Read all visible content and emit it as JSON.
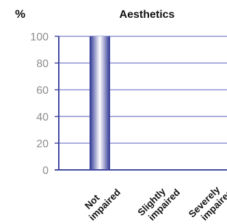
{
  "chart_data": {
    "type": "bar",
    "title": "Aesthetics",
    "ylabel": "%",
    "xlabel": "",
    "categories": [
      "Not\nimpaired",
      "Slightly\nimpaired",
      "Severely\nimpaired"
    ],
    "values": [
      100,
      0,
      0
    ],
    "ylim": [
      0,
      100
    ],
    "yticks": [
      0,
      20,
      40,
      60,
      80,
      100
    ],
    "grid": true,
    "colors": {
      "grid": "#8a8fd0",
      "axis": "#3c45a0",
      "bar_dark": "#2b3391",
      "bar_light": "#ffffff",
      "tick_text": "#8c8c8c",
      "label_text": "#111111"
    }
  }
}
